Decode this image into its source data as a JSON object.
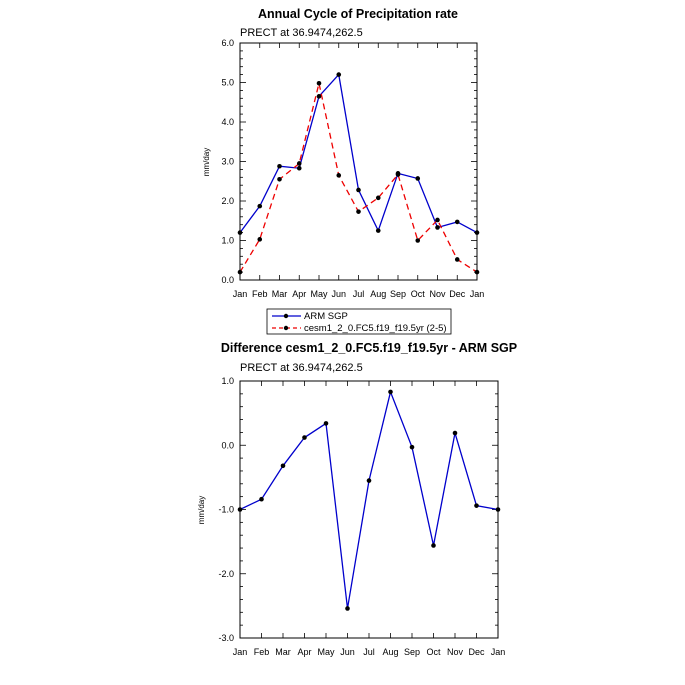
{
  "chart_data": [
    {
      "type": "line",
      "title": "Annual Cycle of Precipitation rate",
      "subtitle": "PRECT at 36.9474,262.5",
      "ylabel": "mm/day",
      "xlabel": "",
      "categories": [
        "Jan",
        "Feb",
        "Mar",
        "Apr",
        "May",
        "Jun",
        "Jul",
        "Aug",
        "Sep",
        "Oct",
        "Nov",
        "Dec",
        "Jan"
      ],
      "ylim": [
        0.0,
        6.0
      ],
      "yticks": [
        "0.0",
        "1.0",
        "2.0",
        "3.0",
        "4.0",
        "5.0",
        "6.0"
      ],
      "series": [
        {
          "name": "ARM SGP",
          "color": "#0000cc",
          "style": "solid",
          "values": [
            1.2,
            1.87,
            2.88,
            2.83,
            4.65,
            5.2,
            2.28,
            1.25,
            2.7,
            2.57,
            1.33,
            1.47,
            1.2
          ]
        },
        {
          "name": "cesm1_2_0.FC5.f19_f19.5yr (2-5)",
          "color": "#ee0000",
          "style": "dashed",
          "values": [
            0.2,
            1.03,
            2.55,
            2.95,
            4.98,
            2.65,
            1.73,
            2.08,
            2.67,
            1.0,
            1.52,
            0.52,
            0.2
          ]
        }
      ],
      "legend": "bottom"
    },
    {
      "type": "line",
      "title": "Difference cesm1_2_0.FC5.f19_f19.5yr - ARM SGP",
      "subtitle": "PRECT at 36.9474,262.5",
      "ylabel": "mm/day",
      "xlabel": "",
      "categories": [
        "Jan",
        "Feb",
        "Mar",
        "Apr",
        "May",
        "Jun",
        "Jul",
        "Aug",
        "Sep",
        "Oct",
        "Nov",
        "Dec",
        "Jan"
      ],
      "ylim": [
        -3.0,
        1.0
      ],
      "yticks": [
        "-3.0",
        "-2.0",
        "-1.0",
        "0.0",
        "1.0"
      ],
      "series": [
        {
          "color": "#0000cc",
          "style": "solid",
          "values": [
            -1.0,
            -0.84,
            -0.32,
            0.12,
            0.34,
            -2.54,
            -0.55,
            0.83,
            -0.03,
            -1.56,
            0.19,
            -0.94,
            -1.0
          ]
        }
      ]
    }
  ]
}
